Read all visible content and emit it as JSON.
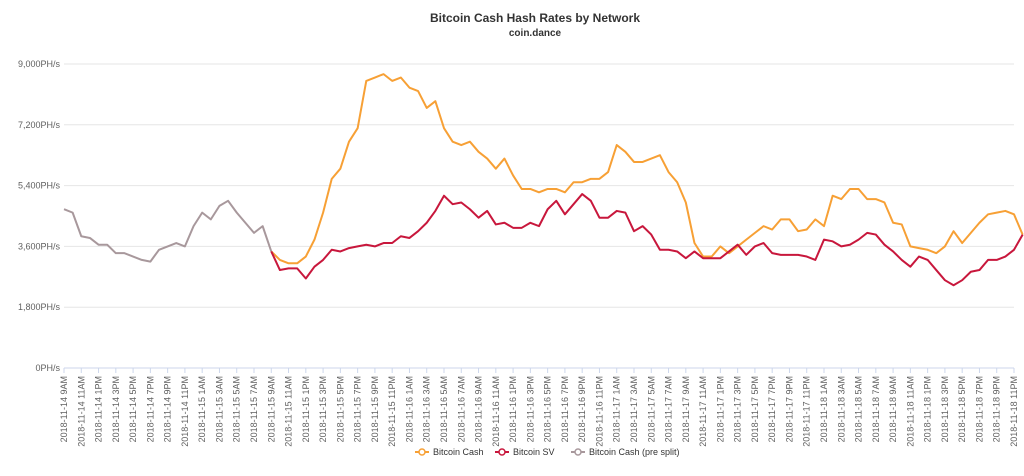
{
  "chart_data": {
    "type": "line",
    "title": "Bitcoin Cash Hash Rates by Network",
    "subtitle": "coin.dance",
    "y_ticks": [
      "0PH/s",
      "1,800PH/s",
      "3,600PH/s",
      "5,400PH/s",
      "7,200PH/s",
      "9,000PH/s"
    ],
    "ylim": [
      0,
      9000
    ],
    "grid": true,
    "legend_position": "bottom-center",
    "x_tick_labels": [
      "2018-11-14 9AM",
      "2018-11-14 11AM",
      "2018-11-14 1PM",
      "2018-11-14 3PM",
      "2018-11-14 5PM",
      "2018-11-14 7PM",
      "2018-11-14 9PM",
      "2018-11-14 11PM",
      "2018-11-15 1AM",
      "2018-11-15 3AM",
      "2018-11-15 5AM",
      "2018-11-15 7AM",
      "2018-11-15 9AM",
      "2018-11-15 11AM",
      "2018-11-15 1PM",
      "2018-11-15 3PM",
      "2018-11-15 5PM",
      "2018-11-15 7PM",
      "2018-11-15 9PM",
      "2018-11-15 11PM",
      "2018-11-16 1AM",
      "2018-11-16 3AM",
      "2018-11-16 5AM",
      "2018-11-16 7AM",
      "2018-11-16 9AM",
      "2018-11-16 11AM",
      "2018-11-16 1PM",
      "2018-11-16 3PM",
      "2018-11-16 5PM",
      "2018-11-16 7PM",
      "2018-11-16 9PM",
      "2018-11-16 11PM",
      "2018-11-17 1AM",
      "2018-11-17 3AM",
      "2018-11-17 5AM",
      "2018-11-17 7AM",
      "2018-11-17 9AM",
      "2018-11-17 11AM",
      "2018-11-17 1PM",
      "2018-11-17 3PM",
      "2018-11-17 5PM",
      "2018-11-17 7PM",
      "2018-11-17 9PM",
      "2018-11-17 11PM",
      "2018-11-18 1AM",
      "2018-11-18 3AM",
      "2018-11-18 5AM",
      "2018-11-18 7AM",
      "2018-11-18 9AM",
      "2018-11-18 11AM",
      "2018-11-18 1PM",
      "2018-11-18 3PM",
      "2018-11-18 5PM",
      "2018-11-18 7PM",
      "2018-11-18 9PM",
      "2018-11-18 11PM"
    ],
    "series": [
      {
        "name": "Bitcoin Cash",
        "color": "#f7a035",
        "marker": "circle-hollow",
        "values": [
          [
            24,
            3450
          ],
          [
            25,
            3200
          ],
          [
            26,
            3100
          ],
          [
            27,
            3100
          ],
          [
            28,
            3300
          ],
          [
            29,
            3800
          ],
          [
            30,
            4600
          ],
          [
            31,
            5600
          ],
          [
            32,
            5900
          ],
          [
            33,
            6700
          ],
          [
            34,
            7100
          ],
          [
            35,
            8500
          ],
          [
            36,
            8600
          ],
          [
            37,
            8700
          ],
          [
            38,
            8500
          ],
          [
            39,
            8600
          ],
          [
            40,
            8300
          ],
          [
            41,
            8200
          ],
          [
            42,
            7700
          ],
          [
            43,
            7900
          ],
          [
            44,
            7100
          ],
          [
            45,
            6700
          ],
          [
            46,
            6600
          ],
          [
            47,
            6700
          ],
          [
            48,
            6400
          ],
          [
            49,
            6200
          ],
          [
            50,
            5900
          ],
          [
            51,
            6200
          ],
          [
            52,
            5700
          ],
          [
            53,
            5300
          ],
          [
            54,
            5300
          ],
          [
            55,
            5200
          ],
          [
            56,
            5300
          ],
          [
            57,
            5300
          ],
          [
            58,
            5200
          ],
          [
            59,
            5500
          ],
          [
            60,
            5500
          ],
          [
            61,
            5600
          ],
          [
            62,
            5600
          ],
          [
            63,
            5800
          ],
          [
            64,
            6600
          ],
          [
            65,
            6400
          ],
          [
            66,
            6100
          ],
          [
            67,
            6100
          ],
          [
            68,
            6200
          ],
          [
            69,
            6300
          ],
          [
            70,
            5800
          ],
          [
            71,
            5500
          ],
          [
            72,
            4900
          ],
          [
            73,
            3700
          ],
          [
            74,
            3300
          ],
          [
            75,
            3300
          ],
          [
            76,
            3600
          ],
          [
            77,
            3400
          ],
          [
            78,
            3600
          ],
          [
            79,
            3800
          ],
          [
            80,
            4000
          ],
          [
            81,
            4200
          ],
          [
            82,
            4100
          ],
          [
            83,
            4400
          ],
          [
            84,
            4400
          ],
          [
            85,
            4050
          ],
          [
            86,
            4100
          ],
          [
            87,
            4400
          ],
          [
            88,
            4200
          ],
          [
            89,
            5100
          ],
          [
            90,
            5000
          ],
          [
            91,
            5300
          ],
          [
            92,
            5300
          ],
          [
            93,
            5000
          ],
          [
            94,
            5000
          ],
          [
            95,
            4900
          ],
          [
            96,
            4300
          ],
          [
            97,
            4250
          ],
          [
            98,
            3600
          ],
          [
            99,
            3550
          ],
          [
            100,
            3500
          ],
          [
            101,
            3400
          ],
          [
            102,
            3600
          ],
          [
            103,
            4050
          ],
          [
            104,
            3700
          ],
          [
            105,
            4000
          ],
          [
            106,
            4300
          ],
          [
            107,
            4550
          ],
          [
            108,
            4600
          ],
          [
            109,
            4650
          ],
          [
            110,
            4550
          ],
          [
            111,
            3950
          ]
        ]
      },
      {
        "name": "Bitcoin SV",
        "color": "#c8173c",
        "marker": "circle-hollow",
        "values": [
          [
            24,
            3450
          ],
          [
            25,
            2900
          ],
          [
            26,
            2950
          ],
          [
            27,
            2950
          ],
          [
            28,
            2650
          ],
          [
            29,
            3000
          ],
          [
            30,
            3200
          ],
          [
            31,
            3500
          ],
          [
            32,
            3450
          ],
          [
            33,
            3550
          ],
          [
            34,
            3600
          ],
          [
            35,
            3650
          ],
          [
            36,
            3600
          ],
          [
            37,
            3700
          ],
          [
            38,
            3700
          ],
          [
            39,
            3900
          ],
          [
            40,
            3850
          ],
          [
            41,
            4050
          ],
          [
            42,
            4300
          ],
          [
            43,
            4650
          ],
          [
            44,
            5100
          ],
          [
            45,
            4850
          ],
          [
            46,
            4900
          ],
          [
            47,
            4700
          ],
          [
            48,
            4450
          ],
          [
            49,
            4650
          ],
          [
            50,
            4250
          ],
          [
            51,
            4300
          ],
          [
            52,
            4150
          ],
          [
            53,
            4150
          ],
          [
            54,
            4300
          ],
          [
            55,
            4200
          ],
          [
            56,
            4700
          ],
          [
            57,
            4950
          ],
          [
            58,
            4550
          ],
          [
            59,
            4850
          ],
          [
            60,
            5150
          ],
          [
            61,
            4950
          ],
          [
            62,
            4450
          ],
          [
            63,
            4450
          ],
          [
            64,
            4650
          ],
          [
            65,
            4600
          ],
          [
            66,
            4050
          ],
          [
            67,
            4200
          ],
          [
            68,
            3950
          ],
          [
            69,
            3500
          ],
          [
            70,
            3500
          ],
          [
            71,
            3450
          ],
          [
            72,
            3250
          ],
          [
            73,
            3450
          ],
          [
            74,
            3250
          ],
          [
            75,
            3250
          ],
          [
            76,
            3250
          ],
          [
            77,
            3450
          ],
          [
            78,
            3650
          ],
          [
            79,
            3350
          ],
          [
            80,
            3600
          ],
          [
            81,
            3700
          ],
          [
            82,
            3400
          ],
          [
            83,
            3350
          ],
          [
            84,
            3350
          ],
          [
            85,
            3350
          ],
          [
            86,
            3300
          ],
          [
            87,
            3200
          ],
          [
            88,
            3800
          ],
          [
            89,
            3750
          ],
          [
            90,
            3600
          ],
          [
            91,
            3650
          ],
          [
            92,
            3800
          ],
          [
            93,
            4000
          ],
          [
            94,
            3950
          ],
          [
            95,
            3650
          ],
          [
            96,
            3450
          ],
          [
            97,
            3200
          ],
          [
            98,
            3000
          ],
          [
            99,
            3300
          ],
          [
            100,
            3200
          ],
          [
            101,
            2900
          ],
          [
            102,
            2600
          ],
          [
            103,
            2450
          ],
          [
            104,
            2600
          ],
          [
            105,
            2850
          ],
          [
            106,
            2900
          ],
          [
            107,
            3200
          ],
          [
            108,
            3200
          ],
          [
            109,
            3300
          ],
          [
            110,
            3500
          ],
          [
            111,
            3950
          ]
        ]
      },
      {
        "name": "Bitcoin Cash (pre split)",
        "color": "#a8989c",
        "marker": "circle-hollow",
        "values": [
          [
            0,
            4700
          ],
          [
            1,
            4600
          ],
          [
            2,
            3900
          ],
          [
            3,
            3850
          ],
          [
            4,
            3650
          ],
          [
            5,
            3650
          ],
          [
            6,
            3400
          ],
          [
            7,
            3400
          ],
          [
            8,
            3300
          ],
          [
            9,
            3200
          ],
          [
            10,
            3150
          ],
          [
            11,
            3500
          ],
          [
            12,
            3600
          ],
          [
            13,
            3700
          ],
          [
            14,
            3600
          ],
          [
            15,
            4200
          ],
          [
            16,
            4600
          ],
          [
            17,
            4400
          ],
          [
            18,
            4800
          ],
          [
            19,
            4950
          ],
          [
            20,
            4600
          ],
          [
            21,
            4300
          ],
          [
            22,
            4000
          ],
          [
            23,
            4200
          ],
          [
            24,
            3450
          ]
        ]
      }
    ]
  }
}
